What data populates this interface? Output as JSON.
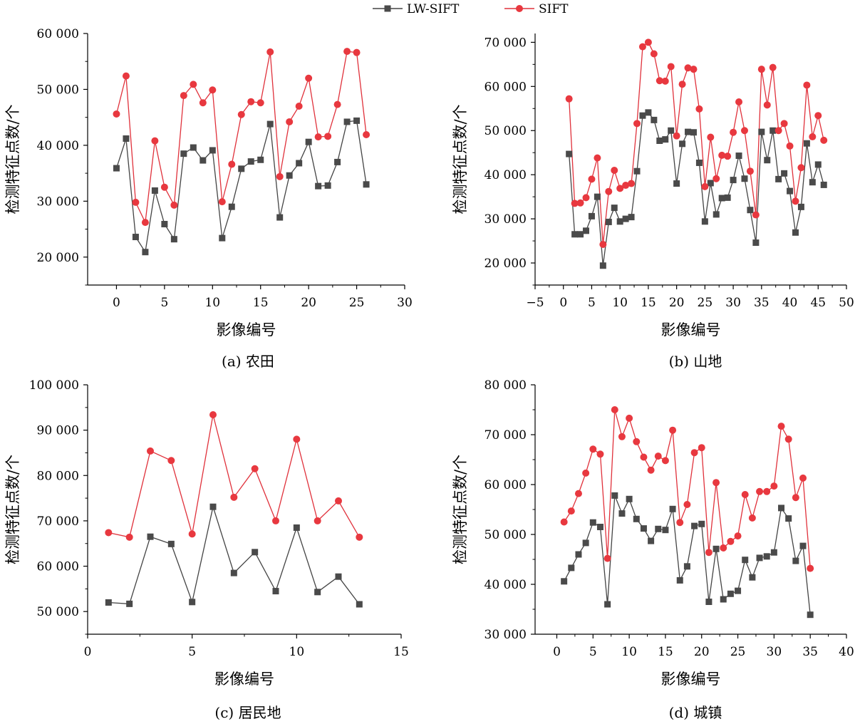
{
  "legend": {
    "series": [
      {
        "name": "LW-SIFT",
        "color": "#444444",
        "marker": "square"
      },
      {
        "name": "SIFT",
        "color": "#e0313b",
        "marker": "circle"
      }
    ]
  },
  "chart_data": [
    {
      "type": "line",
      "caption": "(a) 农田",
      "xlabel": "影像编号",
      "ylabel": "检测特征点数/个",
      "xlim": [
        -3,
        30
      ],
      "ylim": [
        15000,
        60000
      ],
      "xticks": [
        0,
        5,
        10,
        15,
        20,
        25,
        30
      ],
      "xtick_labels": [
        "0",
        "5",
        "10",
        "15",
        "20",
        "25",
        "30"
      ],
      "yticks": [
        20000,
        30000,
        40000,
        50000,
        60000
      ],
      "ytick_labels": [
        "20 000",
        "30 000",
        "40 000",
        "50 000",
        "60 000"
      ],
      "x": [
        0,
        1,
        2,
        3,
        4,
        5,
        6,
        7,
        8,
        9,
        10,
        11,
        12,
        13,
        14,
        15,
        16,
        17,
        18,
        19,
        20,
        21,
        22,
        23,
        24,
        25,
        26
      ],
      "series": [
        {
          "name": "LW-SIFT",
          "values": [
            35900,
            41200,
            23600,
            20900,
            31900,
            25900,
            23200,
            38500,
            39600,
            37300,
            39100,
            23400,
            29000,
            35800,
            37100,
            37400,
            43800,
            27100,
            34600,
            36800,
            40600,
            32700,
            32800,
            37000,
            44200,
            44400,
            33000
          ]
        },
        {
          "name": "SIFT",
          "values": [
            45600,
            52400,
            29800,
            26200,
            40800,
            32500,
            29300,
            48900,
            50900,
            47600,
            49900,
            29900,
            36600,
            45500,
            47800,
            47600,
            56700,
            34400,
            44200,
            47000,
            52000,
            41500,
            41600,
            47300,
            56800,
            56600,
            41900
          ]
        }
      ]
    },
    {
      "type": "line",
      "caption": "(b) 山地",
      "xlabel": "影像编号",
      "ylabel": "检测特征点数/个",
      "xlim": [
        -5,
        50
      ],
      "ylim": [
        15000,
        72000
      ],
      "xticks": [
        -5,
        0,
        5,
        10,
        15,
        20,
        25,
        30,
        35,
        40,
        45,
        50
      ],
      "xtick_labels": [
        "−5",
        "0",
        "5",
        "10",
        "15",
        "20",
        "25",
        "30",
        "35",
        "40",
        "45",
        "50"
      ],
      "yticks": [
        20000,
        30000,
        40000,
        50000,
        60000,
        70000
      ],
      "ytick_labels": [
        "20 000",
        "30 000",
        "40 000",
        "50 000",
        "60 000",
        "70 000"
      ],
      "x": [
        1,
        2,
        3,
        4,
        5,
        6,
        7,
        8,
        9,
        10,
        11,
        12,
        13,
        14,
        15,
        16,
        17,
        18,
        19,
        20,
        21,
        22,
        23,
        24,
        25,
        26,
        27,
        28,
        29,
        30,
        31,
        32,
        33,
        34,
        35,
        36,
        37,
        38,
        39,
        40,
        41,
        42,
        43,
        44,
        45,
        46
      ],
      "series": [
        {
          "name": "LW-SIFT",
          "values": [
            44700,
            26500,
            26500,
            27300,
            30600,
            35000,
            19400,
            29300,
            32500,
            29400,
            30000,
            30400,
            40800,
            53400,
            54100,
            52400,
            47700,
            48000,
            50000,
            38000,
            47000,
            49700,
            49600,
            42700,
            29400,
            38100,
            31000,
            34700,
            34800,
            38800,
            44300,
            39100,
            32000,
            24600,
            49700,
            43300,
            50000,
            39000,
            40300,
            36300,
            26900,
            32700,
            47100,
            38300,
            42300,
            37700
          ]
        },
        {
          "name": "SIFT",
          "values": [
            57200,
            33500,
            33600,
            34800,
            39000,
            43800,
            24200,
            36200,
            41000,
            36900,
            37600,
            38000,
            51600,
            69000,
            70000,
            67400,
            61300,
            61200,
            64500,
            48800,
            60500,
            64200,
            63900,
            54900,
            37300,
            48500,
            39100,
            44400,
            44200,
            49600,
            56500,
            50000,
            40800,
            30900,
            63900,
            55800,
            64300,
            50000,
            51600,
            46500,
            34000,
            41600,
            60300,
            48600,
            53400,
            47800
          ]
        }
      ]
    },
    {
      "type": "line",
      "caption": "(c) 居民地",
      "xlabel": "影像编号",
      "ylabel": "检测特征点数/个",
      "xlim": [
        0,
        15
      ],
      "ylim": [
        45000,
        100000
      ],
      "xticks": [
        0,
        5,
        10,
        15
      ],
      "xtick_labels": [
        "0",
        "5",
        "10",
        "15"
      ],
      "yticks": [
        50000,
        60000,
        70000,
        80000,
        90000,
        100000
      ],
      "ytick_labels": [
        "50 000",
        "60 000",
        "70 000",
        "80 000",
        "90 000",
        "100 000"
      ],
      "x": [
        1,
        2,
        3,
        4,
        5,
        6,
        7,
        8,
        9,
        10,
        11,
        12,
        13
      ],
      "series": [
        {
          "name": "LW-SIFT",
          "values": [
            52000,
            51700,
            66500,
            64900,
            52100,
            73100,
            58500,
            63100,
            54500,
            68500,
            54300,
            57700,
            51600
          ]
        },
        {
          "name": "SIFT",
          "values": [
            67400,
            66400,
            85400,
            83300,
            67100,
            93400,
            75200,
            81500,
            70000,
            88000,
            70000,
            74400,
            66400
          ]
        }
      ]
    },
    {
      "type": "line",
      "caption": "(d) 城镇",
      "xlabel": "影像编号",
      "ylabel": "检测特征点数/个",
      "xlim": [
        -3,
        40
      ],
      "ylim": [
        30000,
        80000
      ],
      "xticks": [
        0,
        5,
        10,
        15,
        20,
        25,
        30,
        35,
        40
      ],
      "xtick_labels": [
        "0",
        "5",
        "10",
        "15",
        "20",
        "25",
        "30",
        "35",
        "40"
      ],
      "yticks": [
        30000,
        40000,
        50000,
        60000,
        70000,
        80000
      ],
      "ytick_labels": [
        "30 000",
        "40 000",
        "50 000",
        "60 000",
        "70 000",
        "80 000"
      ],
      "x": [
        1,
        2,
        3,
        4,
        5,
        6,
        7,
        8,
        9,
        10,
        11,
        12,
        13,
        14,
        15,
        16,
        17,
        18,
        19,
        20,
        21,
        22,
        23,
        24,
        25,
        26,
        27,
        28,
        29,
        30,
        31,
        32,
        33,
        34,
        35
      ],
      "series": [
        {
          "name": "LW-SIFT",
          "values": [
            40600,
            43300,
            46000,
            48300,
            52400,
            51500,
            36000,
            57800,
            54200,
            57100,
            53100,
            51200,
            48700,
            51100,
            50900,
            55100,
            40800,
            43600,
            51700,
            52100,
            36500,
            47100,
            37000,
            38100,
            38700,
            44900,
            41400,
            45300,
            45600,
            46400,
            55300,
            53200,
            44700,
            47700,
            33900
          ]
        },
        {
          "name": "SIFT",
          "values": [
            52500,
            54700,
            58200,
            62300,
            67100,
            66100,
            45200,
            75000,
            69600,
            73300,
            68600,
            65500,
            62900,
            65700,
            64800,
            70900,
            52400,
            56000,
            66400,
            67400,
            46400,
            60400,
            47300,
            48600,
            49700,
            58000,
            53300,
            58600,
            58600,
            59700,
            71700,
            69100,
            57400,
            61300,
            43200
          ]
        }
      ]
    }
  ]
}
